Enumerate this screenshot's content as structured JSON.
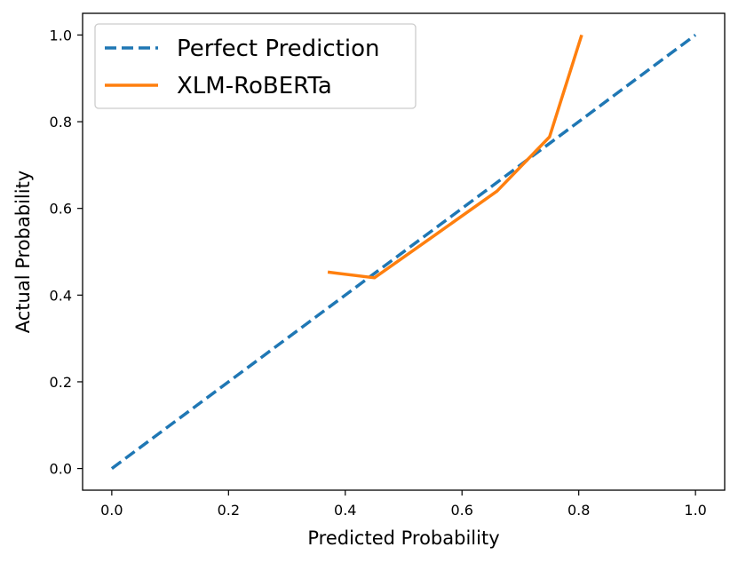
{
  "chart_data": {
    "type": "line",
    "xlabel": "Predicted Probability",
    "ylabel": "Actual Probability",
    "xlim": [
      -0.05,
      1.05
    ],
    "ylim": [
      -0.05,
      1.05
    ],
    "x_ticks": [
      "0.0",
      "0.2",
      "0.4",
      "0.6",
      "0.8",
      "1.0"
    ],
    "y_ticks": [
      "0.0",
      "0.2",
      "0.4",
      "0.6",
      "0.8",
      "1.0"
    ],
    "grid": false,
    "legend_position": "top-left",
    "series": [
      {
        "name": "Perfect Prediction",
        "style": "dashed",
        "color": "#1f77b4",
        "x": [
          0.0,
          1.0
        ],
        "y": [
          0.0,
          1.0
        ]
      },
      {
        "name": "XLM-RoBERTa",
        "style": "solid",
        "color": "#ff7f0e",
        "x": [
          0.37,
          0.45,
          0.55,
          0.66,
          0.75,
          0.805
        ],
        "y": [
          0.453,
          0.44,
          0.535,
          0.64,
          0.765,
          1.0
        ]
      }
    ]
  }
}
